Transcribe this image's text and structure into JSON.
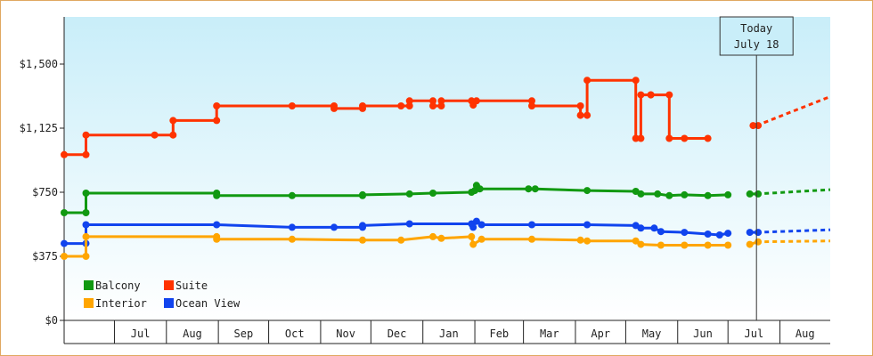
{
  "chart_data": {
    "type": "line",
    "y_tick_labels": [
      "$0",
      "$375",
      "$750",
      "$1,125",
      "$1,500"
    ],
    "y_tick_values": [
      0,
      375,
      750,
      1125,
      1500
    ],
    "ylim": [
      0,
      1500
    ],
    "x_tick_labels": [
      "Jul",
      "Aug",
      "Sep",
      "Oct",
      "Nov",
      "Dec",
      "Jan",
      "Feb",
      "Mar",
      "Apr",
      "May",
      "Jun",
      "Jul",
      "Aug"
    ],
    "x_range": [
      "2015-06-01",
      "2016-08-31"
    ],
    "today": {
      "date": "2016-07-18",
      "line1": "Today",
      "line2": "July 18"
    },
    "grid": false,
    "legend_position": "bottom-left",
    "series": [
      {
        "name": "Suite",
        "color": "#ff3300",
        "points": [
          [
            "2015-06-01",
            970
          ],
          [
            "2015-06-14",
            970
          ],
          [
            "2015-06-14",
            1085
          ],
          [
            "2015-07-25",
            1085
          ],
          [
            "2015-08-05",
            1085
          ],
          [
            "2015-08-05",
            1170
          ],
          [
            "2015-08-31",
            1170
          ],
          [
            "2015-08-31",
            1255
          ],
          [
            "2015-10-15",
            1255
          ],
          [
            "2015-11-09",
            1255
          ],
          [
            "2015-11-09",
            1240
          ],
          [
            "2015-11-26",
            1240
          ],
          [
            "2015-11-26",
            1255
          ],
          [
            "2015-12-19",
            1255
          ],
          [
            "2015-12-24",
            1255
          ],
          [
            "2015-12-24",
            1285
          ],
          [
            "2016-01-07",
            1285
          ],
          [
            "2016-01-07",
            1255
          ],
          [
            "2016-01-12",
            1255
          ],
          [
            "2016-01-12",
            1285
          ],
          [
            "2016-01-30",
            1285
          ],
          [
            "2016-01-31",
            1260
          ],
          [
            "2016-02-02",
            1285
          ],
          [
            "2016-03-06",
            1285
          ],
          [
            "2016-03-06",
            1255
          ],
          [
            "2016-04-04",
            1255
          ],
          [
            "2016-04-04",
            1200
          ],
          [
            "2016-04-08",
            1200
          ],
          [
            "2016-04-08",
            1405
          ],
          [
            "2016-05-07",
            1405
          ],
          [
            "2016-05-07",
            1065
          ],
          [
            "2016-05-10",
            1065
          ],
          [
            "2016-05-10",
            1320
          ],
          [
            "2016-05-16",
            1320
          ],
          [
            "2016-05-16",
            1320
          ],
          [
            "2016-05-27",
            1320
          ],
          [
            "2016-05-27",
            1065
          ],
          [
            "2016-06-05",
            1065
          ],
          [
            "2016-06-19",
            1065
          ]
        ],
        "points_current": [
          [
            "2016-07-16",
            1140
          ],
          [
            "2016-07-19",
            1140
          ]
        ],
        "forecast": [
          [
            "2016-07-18",
            1140
          ],
          [
            "2016-08-31",
            1310
          ]
        ]
      },
      {
        "name": "Balcony",
        "color": "#119911",
        "points": [
          [
            "2015-06-01",
            630
          ],
          [
            "2015-06-14",
            630
          ],
          [
            "2015-06-14",
            745
          ],
          [
            "2015-08-31",
            745
          ],
          [
            "2015-08-31",
            730
          ],
          [
            "2015-10-15",
            730
          ],
          [
            "2015-11-26",
            730
          ],
          [
            "2015-11-26",
            735
          ],
          [
            "2015-12-24",
            740
          ],
          [
            "2016-01-07",
            745
          ],
          [
            "2016-01-30",
            750
          ],
          [
            "2016-02-01",
            760
          ],
          [
            "2016-02-02",
            790
          ],
          [
            "2016-02-04",
            770
          ],
          [
            "2016-03-04",
            770
          ],
          [
            "2016-03-08",
            770
          ],
          [
            "2016-04-08",
            760
          ],
          [
            "2016-05-07",
            755
          ],
          [
            "2016-05-10",
            740
          ],
          [
            "2016-05-20",
            740
          ],
          [
            "2016-05-27",
            730
          ],
          [
            "2016-06-05",
            735
          ],
          [
            "2016-06-19",
            730
          ],
          [
            "2016-07-01",
            735
          ]
        ],
        "points_current": [
          [
            "2016-07-14",
            740
          ],
          [
            "2016-07-19",
            740
          ]
        ],
        "forecast": [
          [
            "2016-07-18",
            740
          ],
          [
            "2016-08-31",
            765
          ]
        ]
      },
      {
        "name": "Ocean View",
        "color": "#1144ee",
        "points": [
          [
            "2015-06-01",
            450
          ],
          [
            "2015-06-14",
            450
          ],
          [
            "2015-06-14",
            560
          ],
          [
            "2015-08-31",
            560
          ],
          [
            "2015-10-15",
            545
          ],
          [
            "2015-11-09",
            545
          ],
          [
            "2015-11-26",
            545
          ],
          [
            "2015-11-26",
            555
          ],
          [
            "2015-12-24",
            565
          ],
          [
            "2016-01-30",
            565
          ],
          [
            "2016-01-31",
            545
          ],
          [
            "2016-02-02",
            580
          ],
          [
            "2016-02-05",
            560
          ],
          [
            "2016-03-06",
            560
          ],
          [
            "2016-04-08",
            560
          ],
          [
            "2016-05-07",
            555
          ],
          [
            "2016-05-10",
            540
          ],
          [
            "2016-05-18",
            540
          ],
          [
            "2016-05-22",
            520
          ],
          [
            "2016-06-05",
            515
          ],
          [
            "2016-06-19",
            505
          ],
          [
            "2016-06-26",
            500
          ],
          [
            "2016-07-01",
            510
          ]
        ],
        "points_current": [
          [
            "2016-07-14",
            515
          ],
          [
            "2016-07-19",
            515
          ]
        ],
        "forecast": [
          [
            "2016-07-18",
            515
          ],
          [
            "2016-08-31",
            530
          ]
        ]
      },
      {
        "name": "Interior",
        "color": "#ffa500",
        "points": [
          [
            "2015-06-01",
            375
          ],
          [
            "2015-06-14",
            375
          ],
          [
            "2015-06-14",
            490
          ],
          [
            "2015-08-31",
            490
          ],
          [
            "2015-08-31",
            475
          ],
          [
            "2015-10-15",
            475
          ],
          [
            "2015-11-26",
            470
          ],
          [
            "2015-12-19",
            470
          ],
          [
            "2016-01-07",
            490
          ],
          [
            "2016-01-12",
            480
          ],
          [
            "2016-01-30",
            490
          ],
          [
            "2016-01-31",
            445
          ],
          [
            "2016-02-05",
            475
          ],
          [
            "2016-03-06",
            475
          ],
          [
            "2016-04-04",
            470
          ],
          [
            "2016-04-08",
            465
          ],
          [
            "2016-05-07",
            465
          ],
          [
            "2016-05-10",
            445
          ],
          [
            "2016-05-22",
            440
          ],
          [
            "2016-06-05",
            440
          ],
          [
            "2016-06-19",
            440
          ],
          [
            "2016-07-01",
            440
          ]
        ],
        "points_current": [
          [
            "2016-07-14",
            445
          ],
          [
            "2016-07-19",
            460
          ]
        ],
        "forecast": [
          [
            "2016-07-18",
            460
          ],
          [
            "2016-08-31",
            465
          ]
        ]
      }
    ],
    "legend": [
      {
        "name": "Balcony",
        "color": "#119911"
      },
      {
        "name": "Suite",
        "color": "#ff3300"
      },
      {
        "name": "Interior",
        "color": "#ffa500"
      },
      {
        "name": "Ocean View",
        "color": "#1144ee"
      }
    ]
  }
}
